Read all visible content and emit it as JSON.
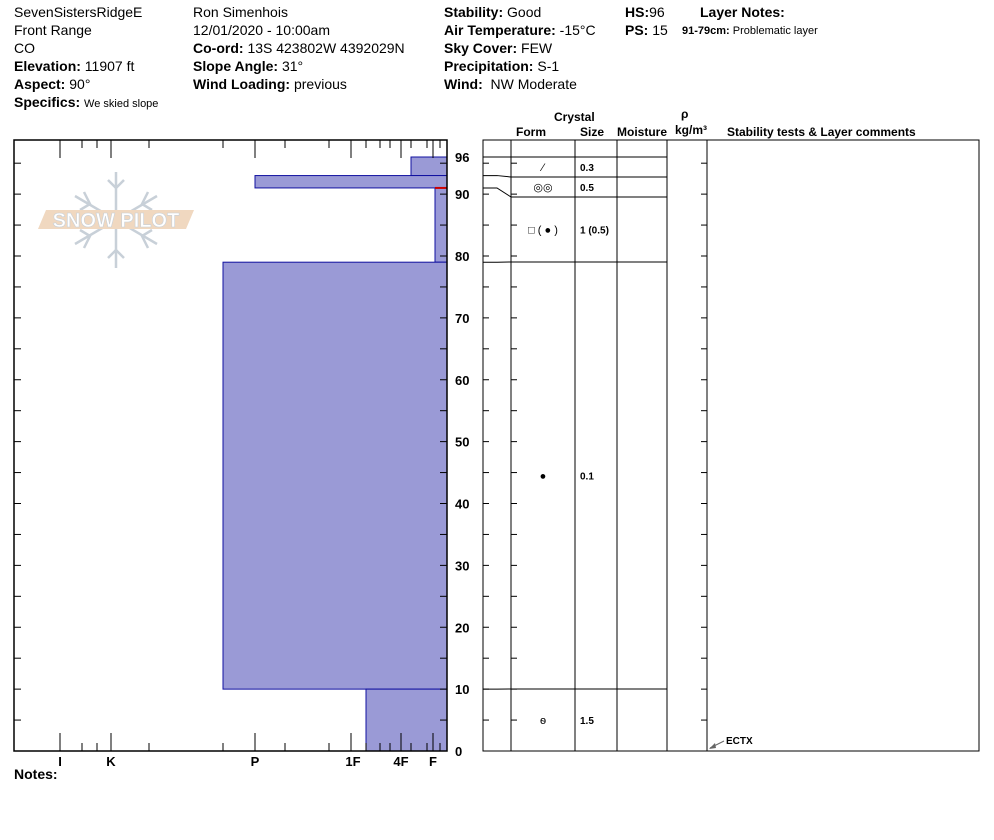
{
  "header": {
    "location": "SevenSistersRidgeE",
    "range": "Front Range",
    "state": "CO",
    "elevation_label": "Elevation:",
    "elevation": "11907 ft",
    "aspect_label": "Aspect:",
    "aspect": "90°",
    "specifics_label": "Specifics:",
    "specifics": "We skied slope",
    "observer": "Ron Simenhois",
    "datetime": "12/01/2020 - 10:00am",
    "coord_label": "Co-ord:",
    "coord": "13S 423802W 4392029N",
    "slope_label": "Slope Angle:",
    "slope": "31°",
    "wind_loading_label": "Wind Loading:",
    "wind_loading": "previous",
    "stability_label": "Stability:",
    "stability": "Good",
    "air_temp_label": "Air Temperature:",
    "air_temp": "-15°C",
    "sky_label": "Sky Cover:",
    "sky": "FEW",
    "precip_label": "Precipitation:",
    "precip": "S-1",
    "wind_label": "Wind:",
    "wind": "NW Moderate",
    "hs_label": "HS:",
    "hs": "96",
    "ps_label": "PS:",
    "ps": "15",
    "layer_notes_label": "Layer Notes:",
    "layer_note_range": "91-79cm:",
    "layer_note_text": "Problematic layer"
  },
  "table_headers": {
    "crystal": "Crystal",
    "form": "Form",
    "size": "Size",
    "moisture": "Moisture",
    "rho": "ρ",
    "density_unit": "kg/m³",
    "stability": "Stability tests & Layer comments"
  },
  "notes_label": "Notes:",
  "logo_text": "SNOW PILOT",
  "colors": {
    "layer_fill": "#9a9ad6",
    "layer_stroke": "#1010a0",
    "problem_layer": "#cc0000",
    "logo_band": "#f0d8c0",
    "logo_flake": "#c8d0d8"
  },
  "chart_data": {
    "type": "bar",
    "ylabel": "",
    "ylim": [
      0,
      96
    ],
    "y_ticks": [
      "0",
      "10",
      "20",
      "30",
      "40",
      "50",
      "60",
      "70",
      "80",
      "90",
      "96"
    ],
    "hardness_ticks": [
      "I",
      "K",
      "P",
      "1F",
      "4F",
      "F"
    ],
    "layers": [
      {
        "top": 96,
        "bottom": 93,
        "hardness": "4F+",
        "form": "decomposing",
        "form_symbol": "⁄",
        "size": "0.3"
      },
      {
        "top": 93,
        "bottom": 91,
        "hardness": "P",
        "form": "rounded",
        "form_symbol": "◎◎",
        "size": "0.5"
      },
      {
        "top": 91,
        "bottom": 79,
        "hardness": "F+",
        "form": "faceted (rounded)",
        "form_symbol": "□ ( ● )",
        "size": "1 (0.5)"
      },
      {
        "top": 79,
        "bottom": 10,
        "hardness": "P-",
        "form": "rounded",
        "form_symbol": "●",
        "size": "0.1"
      },
      {
        "top": 10,
        "bottom": 0,
        "hardness": "1F-",
        "form": "depth hoar",
        "form_symbol": "ѳ",
        "size": "1.5"
      }
    ],
    "problem_layer_depth": 91,
    "stability_tests": [
      {
        "depth": 0,
        "result": "ECTX"
      }
    ]
  }
}
